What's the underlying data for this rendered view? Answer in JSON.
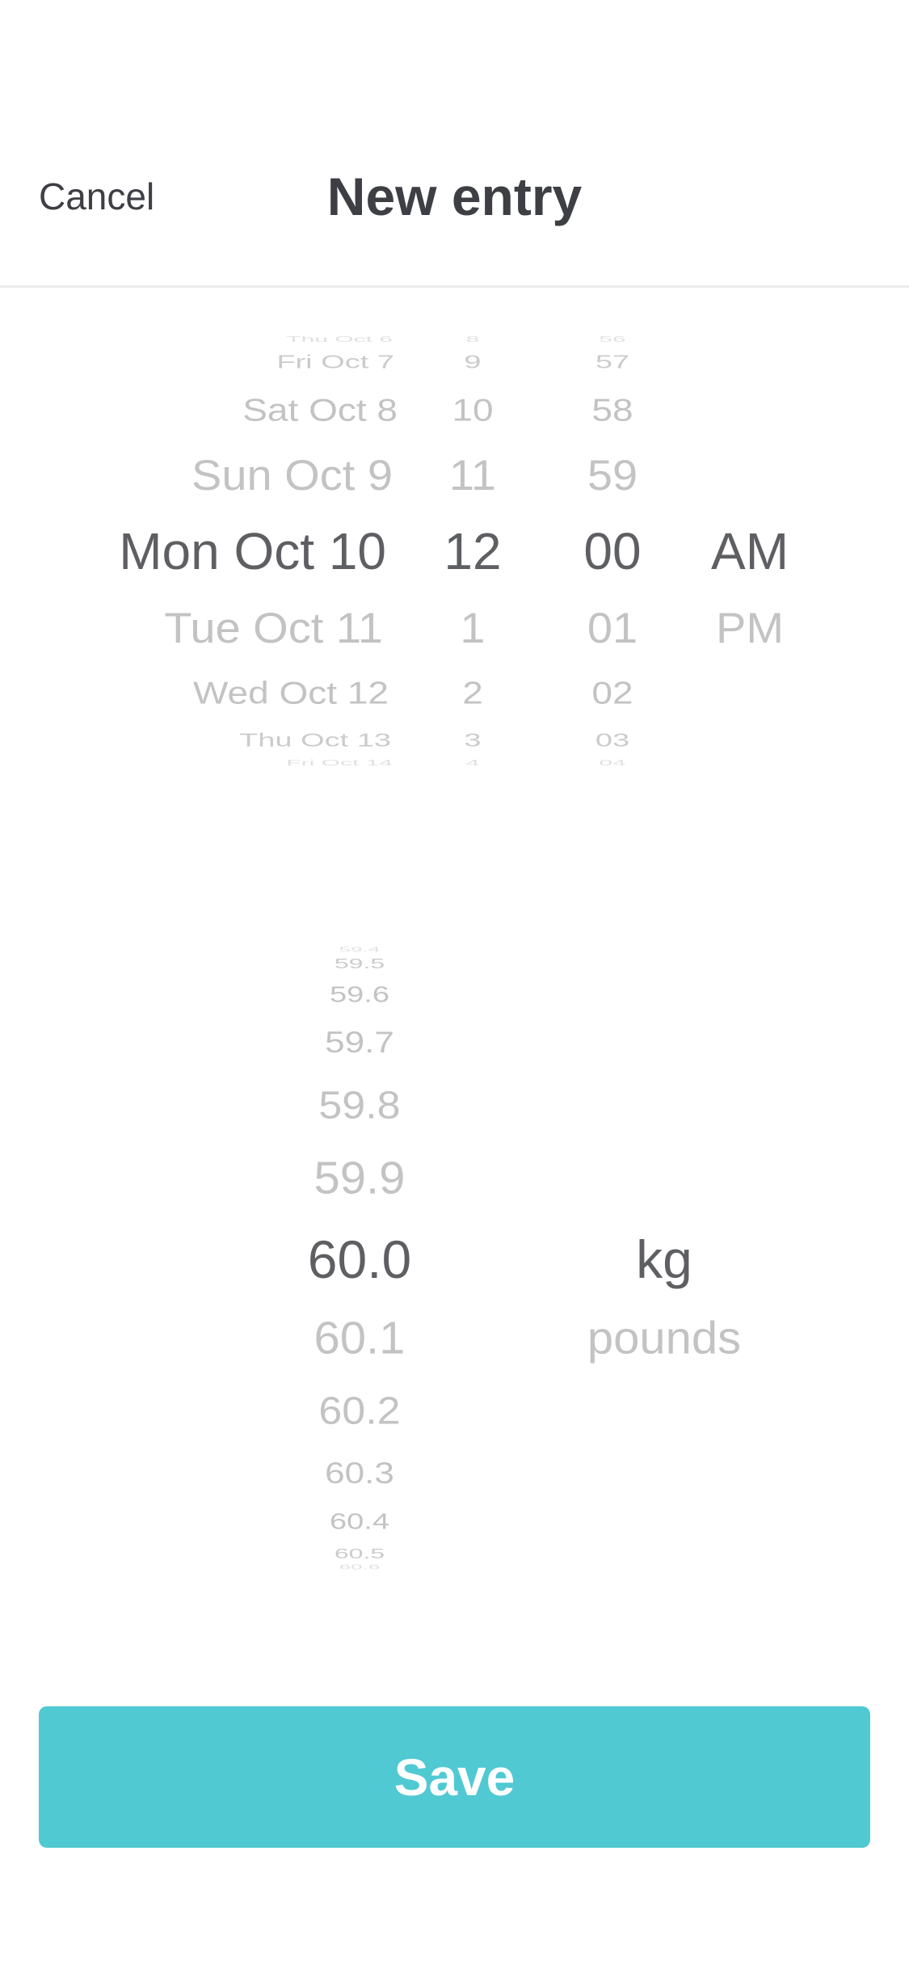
{
  "header": {
    "cancel_label": "Cancel",
    "title": "New entry"
  },
  "date_picker": {
    "days": [
      "Thu Oct 6",
      "Fri Oct 7",
      "Sat Oct 8",
      "Sun Oct 9",
      "Mon Oct 10",
      "Tue Oct 11",
      "Wed Oct 12",
      "Thu Oct 13",
      "Fri Oct 14"
    ],
    "hours": [
      "8",
      "9",
      "10",
      "11",
      "12",
      "1",
      "2",
      "3",
      "4"
    ],
    "minutes": [
      "56",
      "57",
      "58",
      "59",
      "00",
      "01",
      "02",
      "03",
      "04"
    ],
    "periods": [
      "AM",
      "PM"
    ],
    "selected_day": "Mon Oct 10",
    "selected_hour": "12",
    "selected_minute": "00",
    "selected_period": "AM"
  },
  "weight_picker": {
    "values": [
      "59.4",
      "59.5",
      "59.6",
      "59.7",
      "59.8",
      "59.9",
      "60.0",
      "60.1",
      "60.2",
      "60.3",
      "60.4",
      "60.5",
      "60.6"
    ],
    "units": [
      "kg",
      "pounds"
    ],
    "selected_value": "60.0",
    "selected_unit": "kg"
  },
  "footer": {
    "save_label": "Save"
  },
  "colors": {
    "accent": "#50c9d2",
    "text_dark": "#3d3f44",
    "text_selected": "#5e5f63",
    "text_muted": "#c3c3c3"
  }
}
